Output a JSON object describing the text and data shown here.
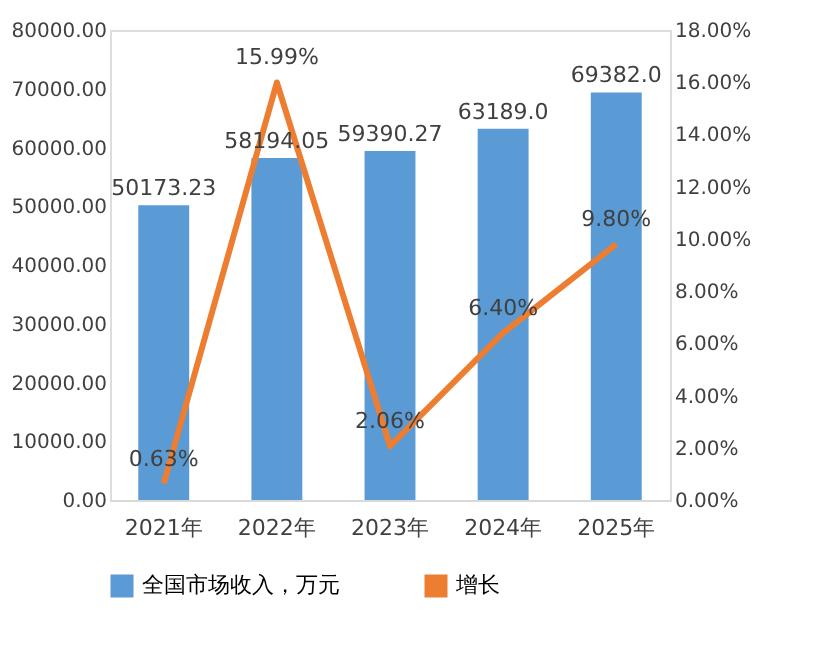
{
  "chart_data": {
    "type": "bar",
    "categories": [
      "2021年",
      "2022年",
      "2023年",
      "2024年",
      "2025年"
    ],
    "series": [
      {
        "name": "全国市场收入，万元",
        "color": "#5b9bd5",
        "values": [
          50173.23,
          58194.05,
          59390.27,
          63189.0,
          69382.0
        ],
        "value_labels": [
          "50173.23",
          "58194.05",
          "59390.27",
          "63189.0",
          "69382.0"
        ]
      },
      {
        "name": "增长",
        "type": "line",
        "axis": "y2",
        "color": "#ed7d31",
        "values": [
          0.63,
          15.99,
          2.06,
          6.4,
          9.8
        ],
        "value_labels": [
          "0.63%",
          "15.99%",
          "2.06%",
          "6.40%",
          "9.80%"
        ]
      }
    ],
    "ylim": [
      0,
      80000
    ],
    "yticks": [
      {
        "value": 0,
        "label": "0.00"
      },
      {
        "value": 10000,
        "label": "10000.00"
      },
      {
        "value": 20000,
        "label": "20000.00"
      },
      {
        "value": 30000,
        "label": "30000.00"
      },
      {
        "value": 40000,
        "label": "40000.00"
      },
      {
        "value": 50000,
        "label": "50000.00"
      },
      {
        "value": 60000,
        "label": "60000.00"
      },
      {
        "value": 70000,
        "label": "70000.00"
      },
      {
        "value": 80000,
        "label": "80000.00"
      }
    ],
    "y2lim": [
      0,
      18
    ],
    "y2ticks": [
      {
        "value": 0,
        "label": "0.00%"
      },
      {
        "value": 2,
        "label": "2.00%"
      },
      {
        "value": 4,
        "label": "4.00%"
      },
      {
        "value": 6,
        "label": "6.00%"
      },
      {
        "value": 8,
        "label": "8.00%"
      },
      {
        "value": 10,
        "label": "10.00%"
      },
      {
        "value": 12,
        "label": "12.00%"
      },
      {
        "value": 14,
        "label": "14.00%"
      },
      {
        "value": 16,
        "label": "16.00%"
      },
      {
        "value": 18,
        "label": "18.00%"
      }
    ],
    "grid": false,
    "legend": "bottom",
    "marker": "none",
    "line_style": "solid"
  }
}
